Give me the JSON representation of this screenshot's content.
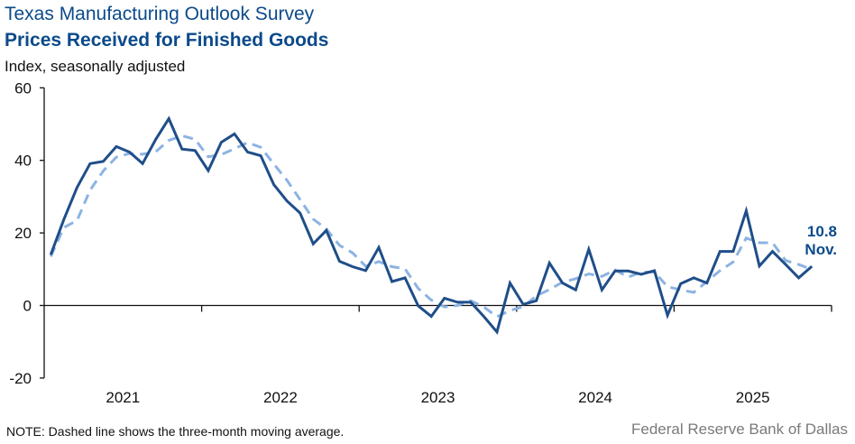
{
  "header": {
    "title": "Texas Manufacturing Outlook Survey",
    "subtitle": "Prices Received for Finished Goods",
    "unit_label": "Index, seasonally adjusted"
  },
  "footer": {
    "note": "NOTE: Dashed line shows the three-month  moving average.",
    "source": "Federal Reserve Bank of Dallas"
  },
  "colors": {
    "title": "#0b4a8b",
    "series_main": "#1f4e89",
    "series_ma": "#8db3e2",
    "axis": "#111111"
  },
  "chart_data": {
    "type": "line",
    "title": "Prices Received for Finished Goods",
    "xlabel": "",
    "ylabel": "Index, seasonally adjusted",
    "ylim": [
      -20,
      60
    ],
    "yticks": [
      60,
      40,
      20,
      0,
      -20
    ],
    "ytick_labels": [
      "60",
      "40",
      "20",
      "0",
      "-20"
    ],
    "x_start": "2021-01",
    "x_end": "2025-11",
    "xtick_labels": [
      "2021",
      "2022",
      "2023",
      "2024",
      "2025"
    ],
    "grid": false,
    "legend": "none",
    "annotation": {
      "value_label": "10.8",
      "month_label": "Nov.",
      "position": "end-of-series"
    },
    "series": [
      {
        "name": "Prices received for finished goods index",
        "style": "solid",
        "values": [
          14.0,
          23.7,
          32.5,
          39.1,
          39.7,
          43.8,
          42.3,
          39.1,
          45.8,
          51.5,
          43.1,
          42.7,
          37.2,
          45.0,
          47.3,
          42.3,
          41.3,
          33.3,
          28.8,
          25.5,
          17.0,
          20.7,
          12.2,
          10.7,
          9.6,
          16.0,
          6.6,
          7.6,
          -0.1,
          -3.0,
          2.0,
          0.9,
          0.9,
          -3.0,
          -7.3,
          6.2,
          0.3,
          1.3,
          11.7,
          6.2,
          4.3,
          15.5,
          4.3,
          9.5,
          9.5,
          8.6,
          9.6,
          -2.7,
          6.0,
          7.6,
          6.2,
          14.9,
          14.9,
          26.1,
          10.9,
          14.9,
          11.3,
          7.6,
          10.8
        ]
      },
      {
        "name": "Three-month moving average",
        "style": "dashed",
        "values": [
          13.5,
          21.5,
          23.4,
          31.8,
          37.1,
          40.9,
          41.9,
          41.7,
          42.4,
          45.5,
          46.8,
          45.8,
          41.0,
          41.6,
          43.2,
          44.9,
          43.6,
          39.0,
          34.5,
          29.2,
          23.8,
          21.1,
          16.6,
          14.5,
          10.8,
          12.1,
          10.7,
          10.1,
          4.7,
          1.5,
          -0.4,
          0.0,
          1.3,
          -0.4,
          -3.1,
          -1.4,
          -0.3,
          2.6,
          4.4,
          6.4,
          7.4,
          8.7,
          8.0,
          9.8,
          7.8,
          9.2,
          9.2,
          5.2,
          4.3,
          3.6,
          6.6,
          9.6,
          12.0,
          18.6,
          17.3,
          17.3,
          12.4,
          11.3,
          9.9
        ]
      }
    ]
  }
}
